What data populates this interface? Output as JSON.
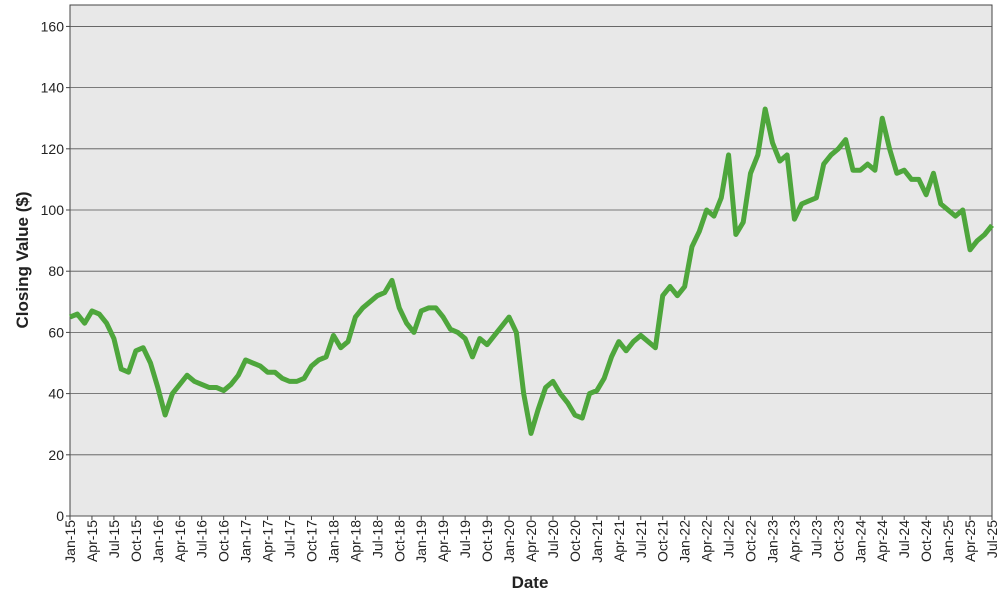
{
  "chart_data": {
    "type": "line",
    "x_label": "Date",
    "y_label": "Closing Value ($)",
    "categories": [
      "Jan-15",
      null,
      null,
      "Apr-15",
      null,
      null,
      "Jul-15",
      null,
      null,
      "Oct-15",
      null,
      null,
      "Jan-16",
      null,
      null,
      "Apr-16",
      null,
      null,
      "Jul-16",
      null,
      null,
      "Oct-16",
      null,
      null,
      "Jan-17",
      null,
      null,
      "Apr-17",
      null,
      null,
      "Jul-17",
      null,
      null,
      "Oct-17",
      null,
      null,
      "Jan-18",
      null,
      null,
      "Apr-18",
      null,
      null,
      "Jul-18",
      null,
      null,
      "Oct-18",
      null,
      null,
      "Jan-19",
      null,
      null,
      "Apr-19",
      null,
      null,
      "Jul-19",
      null,
      null,
      "Oct-19",
      null,
      null,
      "Jan-20",
      null,
      null,
      "Apr-20",
      null,
      null,
      "Jul-20",
      null,
      null,
      "Oct-20",
      null,
      null,
      "Jan-21",
      null,
      null,
      "Apr-21",
      null,
      null,
      "Jul-21",
      null,
      null,
      "Oct-21",
      null,
      null,
      "Jan-22",
      null,
      null,
      "Apr-22",
      null,
      null,
      "Jul-22",
      null,
      null,
      "Oct-22",
      null,
      null,
      "Jan-23",
      null,
      null,
      "Apr-23",
      null,
      null,
      "Jul-23",
      null,
      null,
      "Oct-23",
      null,
      null,
      "Jan-24",
      null,
      null,
      "Apr-24",
      null,
      null,
      "Jul-24",
      null,
      null,
      "Oct-24",
      null,
      null,
      "Jan-25",
      null,
      null,
      "Apr-25",
      null,
      null,
      "Jul-25"
    ],
    "values": [
      65,
      66,
      63,
      67,
      66,
      63,
      58,
      48,
      47,
      54,
      55,
      50,
      42,
      33,
      40,
      43,
      46,
      44,
      43,
      42,
      42,
      41,
      43,
      46,
      51,
      50,
      49,
      47,
      47,
      45,
      44,
      44,
      45,
      49,
      51,
      52,
      59,
      55,
      57,
      65,
      68,
      70,
      72,
      73,
      77,
      68,
      63,
      60,
      67,
      68,
      68,
      65,
      61,
      60,
      58,
      52,
      58,
      56,
      59,
      62,
      65,
      60,
      40,
      27,
      35,
      42,
      44,
      40,
      37,
      33,
      32,
      40,
      41,
      45,
      52,
      57,
      54,
      57,
      59,
      57,
      55,
      72,
      75,
      72,
      75,
      88,
      93,
      100,
      98,
      104,
      118,
      92,
      96,
      112,
      118,
      133,
      122,
      116,
      118,
      97,
      102,
      103,
      104,
      115,
      118,
      120,
      123,
      113,
      113,
      115,
      113,
      130,
      120,
      112,
      113,
      110,
      110,
      105,
      112,
      102,
      100,
      98,
      100,
      87,
      90,
      92,
      95
    ],
    "color": "#4ea63c",
    "ylim": [
      0,
      167
    ],
    "yticks": [
      0,
      20,
      40,
      60,
      80,
      100,
      120,
      140,
      160
    ],
    "grid": true
  }
}
